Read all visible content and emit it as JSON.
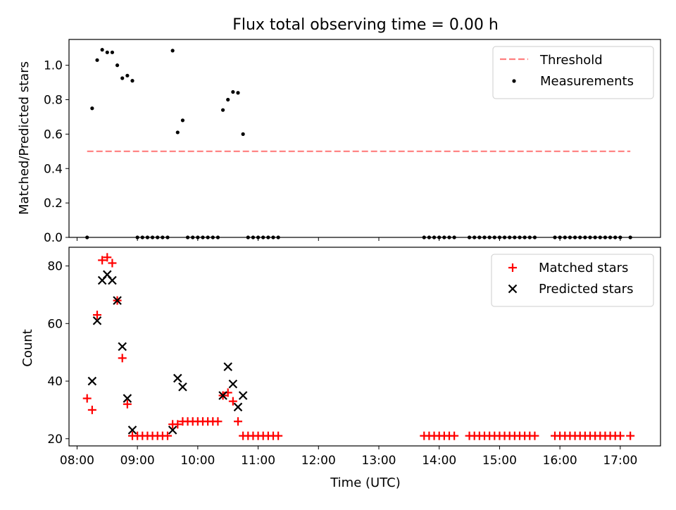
{
  "figure": {
    "title": "Flux total observing time = 0.00 h",
    "xlabel": "Time (UTC)"
  },
  "chart_data": [
    {
      "type": "scatter",
      "ylabel": "Matched/Predicted stars",
      "xlim": [
        "07:52",
        "17:40"
      ],
      "ylim": [
        0,
        1.15
      ],
      "yticks": [
        0.0,
        0.2,
        0.4,
        0.6,
        0.8,
        1.0
      ],
      "ytick_labels": [
        "0.0",
        "0.2",
        "0.4",
        "0.6",
        "0.8",
        "1.0"
      ],
      "xtick_labels_shown": false,
      "legend_position": "top-right",
      "threshold": {
        "name": "Threshold",
        "value": 0.5,
        "x_range": [
          "08:10",
          "17:10"
        ],
        "color": "#ff7f7f"
      },
      "series": [
        {
          "name": "Measurements",
          "color": "#000000",
          "marker": "dot",
          "points": [
            [
              "08:10",
              0.0
            ],
            [
              "08:15",
              0.75
            ],
            [
              "08:20",
              1.03
            ],
            [
              "08:25",
              1.09
            ],
            [
              "08:30",
              1.075
            ],
            [
              "08:35",
              1.075
            ],
            [
              "08:40",
              1.0
            ],
            [
              "08:45",
              0.925
            ],
            [
              "08:50",
              0.94
            ],
            [
              "08:55",
              0.91
            ],
            [
              "09:00",
              0.0
            ],
            [
              "09:05",
              0.0
            ],
            [
              "09:10",
              0.0
            ],
            [
              "09:15",
              0.0
            ],
            [
              "09:20",
              0.0
            ],
            [
              "09:25",
              0.0
            ],
            [
              "09:30",
              0.0
            ],
            [
              "09:35",
              1.085
            ],
            [
              "09:40",
              0.61
            ],
            [
              "09:45",
              0.68
            ],
            [
              "09:50",
              0.0
            ],
            [
              "09:55",
              0.0
            ],
            [
              "10:00",
              0.0
            ],
            [
              "10:05",
              0.0
            ],
            [
              "10:10",
              0.0
            ],
            [
              "10:15",
              0.0
            ],
            [
              "10:20",
              0.0
            ],
            [
              "10:25",
              0.74
            ],
            [
              "10:30",
              0.8
            ],
            [
              "10:35",
              0.845
            ],
            [
              "10:40",
              0.84
            ],
            [
              "10:45",
              0.6
            ],
            [
              "10:50",
              0.0
            ],
            [
              "10:55",
              0.0
            ],
            [
              "11:00",
              0.0
            ],
            [
              "11:05",
              0.0
            ],
            [
              "11:10",
              0.0
            ],
            [
              "11:15",
              0.0
            ],
            [
              "11:20",
              0.0
            ],
            [
              "13:45",
              0.0
            ],
            [
              "13:50",
              0.0
            ],
            [
              "13:55",
              0.0
            ],
            [
              "14:00",
              0.0
            ],
            [
              "14:05",
              0.0
            ],
            [
              "14:10",
              0.0
            ],
            [
              "14:15",
              0.0
            ],
            [
              "14:30",
              0.0
            ],
            [
              "14:35",
              0.0
            ],
            [
              "14:40",
              0.0
            ],
            [
              "14:45",
              0.0
            ],
            [
              "14:50",
              0.0
            ],
            [
              "14:55",
              0.0
            ],
            [
              "15:00",
              0.0
            ],
            [
              "15:05",
              0.0
            ],
            [
              "15:10",
              0.0
            ],
            [
              "15:15",
              0.0
            ],
            [
              "15:20",
              0.0
            ],
            [
              "15:25",
              0.0
            ],
            [
              "15:30",
              0.0
            ],
            [
              "15:35",
              0.0
            ],
            [
              "15:55",
              0.0
            ],
            [
              "16:00",
              0.0
            ],
            [
              "16:05",
              0.0
            ],
            [
              "16:10",
              0.0
            ],
            [
              "16:15",
              0.0
            ],
            [
              "16:20",
              0.0
            ],
            [
              "16:25",
              0.0
            ],
            [
              "16:30",
              0.0
            ],
            [
              "16:35",
              0.0
            ],
            [
              "16:40",
              0.0
            ],
            [
              "16:45",
              0.0
            ],
            [
              "16:50",
              0.0
            ],
            [
              "16:55",
              0.0
            ],
            [
              "17:00",
              0.0
            ],
            [
              "17:10",
              0.0
            ]
          ]
        }
      ]
    },
    {
      "type": "scatter",
      "ylabel": "Count",
      "xlim": [
        "07:52",
        "17:40"
      ],
      "ylim": [
        17.5,
        86.5
      ],
      "yticks": [
        20,
        40,
        60,
        80
      ],
      "ytick_labels": [
        "20",
        "40",
        "60",
        "80"
      ],
      "xticks": [
        "08:00",
        "09:00",
        "10:00",
        "11:00",
        "12:00",
        "13:00",
        "14:00",
        "15:00",
        "16:00",
        "17:00"
      ],
      "xtick_labels": [
        "08:00",
        "09:00",
        "10:00",
        "11:00",
        "12:00",
        "13:00",
        "14:00",
        "15:00",
        "16:00",
        "17:00"
      ],
      "legend_position": "top-right",
      "series": [
        {
          "name": "Matched stars",
          "color": "#ff0000",
          "marker": "plus",
          "points": [
            [
              "08:10",
              34
            ],
            [
              "08:15",
              30
            ],
            [
              "08:20",
              63
            ],
            [
              "08:25",
              82
            ],
            [
              "08:30",
              83
            ],
            [
              "08:35",
              81
            ],
            [
              "08:40",
              68
            ],
            [
              "08:45",
              48
            ],
            [
              "08:50",
              32
            ],
            [
              "08:55",
              21
            ],
            [
              "09:00",
              21
            ],
            [
              "09:05",
              21
            ],
            [
              "09:10",
              21
            ],
            [
              "09:15",
              21
            ],
            [
              "09:20",
              21
            ],
            [
              "09:25",
              21
            ],
            [
              "09:30",
              21
            ],
            [
              "09:35",
              25
            ],
            [
              "09:40",
              25
            ],
            [
              "09:45",
              26
            ],
            [
              "09:50",
              26
            ],
            [
              "09:55",
              26
            ],
            [
              "10:00",
              26
            ],
            [
              "10:05",
              26
            ],
            [
              "10:10",
              26
            ],
            [
              "10:15",
              26
            ],
            [
              "10:20",
              26
            ],
            [
              "10:25",
              35
            ],
            [
              "10:30",
              36
            ],
            [
              "10:35",
              33
            ],
            [
              "10:40",
              26
            ],
            [
              "10:45",
              21
            ],
            [
              "10:50",
              21
            ],
            [
              "10:55",
              21
            ],
            [
              "11:00",
              21
            ],
            [
              "11:05",
              21
            ],
            [
              "11:10",
              21
            ],
            [
              "11:15",
              21
            ],
            [
              "11:20",
              21
            ],
            [
              "13:45",
              21
            ],
            [
              "13:50",
              21
            ],
            [
              "13:55",
              21
            ],
            [
              "14:00",
              21
            ],
            [
              "14:05",
              21
            ],
            [
              "14:10",
              21
            ],
            [
              "14:15",
              21
            ],
            [
              "14:30",
              21
            ],
            [
              "14:35",
              21
            ],
            [
              "14:40",
              21
            ],
            [
              "14:45",
              21
            ],
            [
              "14:50",
              21
            ],
            [
              "14:55",
              21
            ],
            [
              "15:00",
              21
            ],
            [
              "15:05",
              21
            ],
            [
              "15:10",
              21
            ],
            [
              "15:15",
              21
            ],
            [
              "15:20",
              21
            ],
            [
              "15:25",
              21
            ],
            [
              "15:30",
              21
            ],
            [
              "15:35",
              21
            ],
            [
              "15:55",
              21
            ],
            [
              "16:00",
              21
            ],
            [
              "16:05",
              21
            ],
            [
              "16:10",
              21
            ],
            [
              "16:15",
              21
            ],
            [
              "16:20",
              21
            ],
            [
              "16:25",
              21
            ],
            [
              "16:30",
              21
            ],
            [
              "16:35",
              21
            ],
            [
              "16:40",
              21
            ],
            [
              "16:45",
              21
            ],
            [
              "16:50",
              21
            ],
            [
              "16:55",
              21
            ],
            [
              "17:00",
              21
            ],
            [
              "17:10",
              21
            ]
          ]
        },
        {
          "name": "Predicted stars",
          "color": "#000000",
          "marker": "x",
          "points": [
            [
              "08:15",
              40
            ],
            [
              "08:20",
              61
            ],
            [
              "08:25",
              75
            ],
            [
              "08:30",
              77
            ],
            [
              "08:35",
              75
            ],
            [
              "08:40",
              68
            ],
            [
              "08:45",
              52
            ],
            [
              "08:50",
              34
            ],
            [
              "08:55",
              23
            ],
            [
              "09:35",
              23
            ],
            [
              "09:40",
              41
            ],
            [
              "09:45",
              38
            ],
            [
              "10:25",
              35
            ],
            [
              "10:30",
              45
            ],
            [
              "10:35",
              39
            ],
            [
              "10:40",
              31
            ],
            [
              "10:45",
              35
            ]
          ]
        }
      ]
    }
  ]
}
